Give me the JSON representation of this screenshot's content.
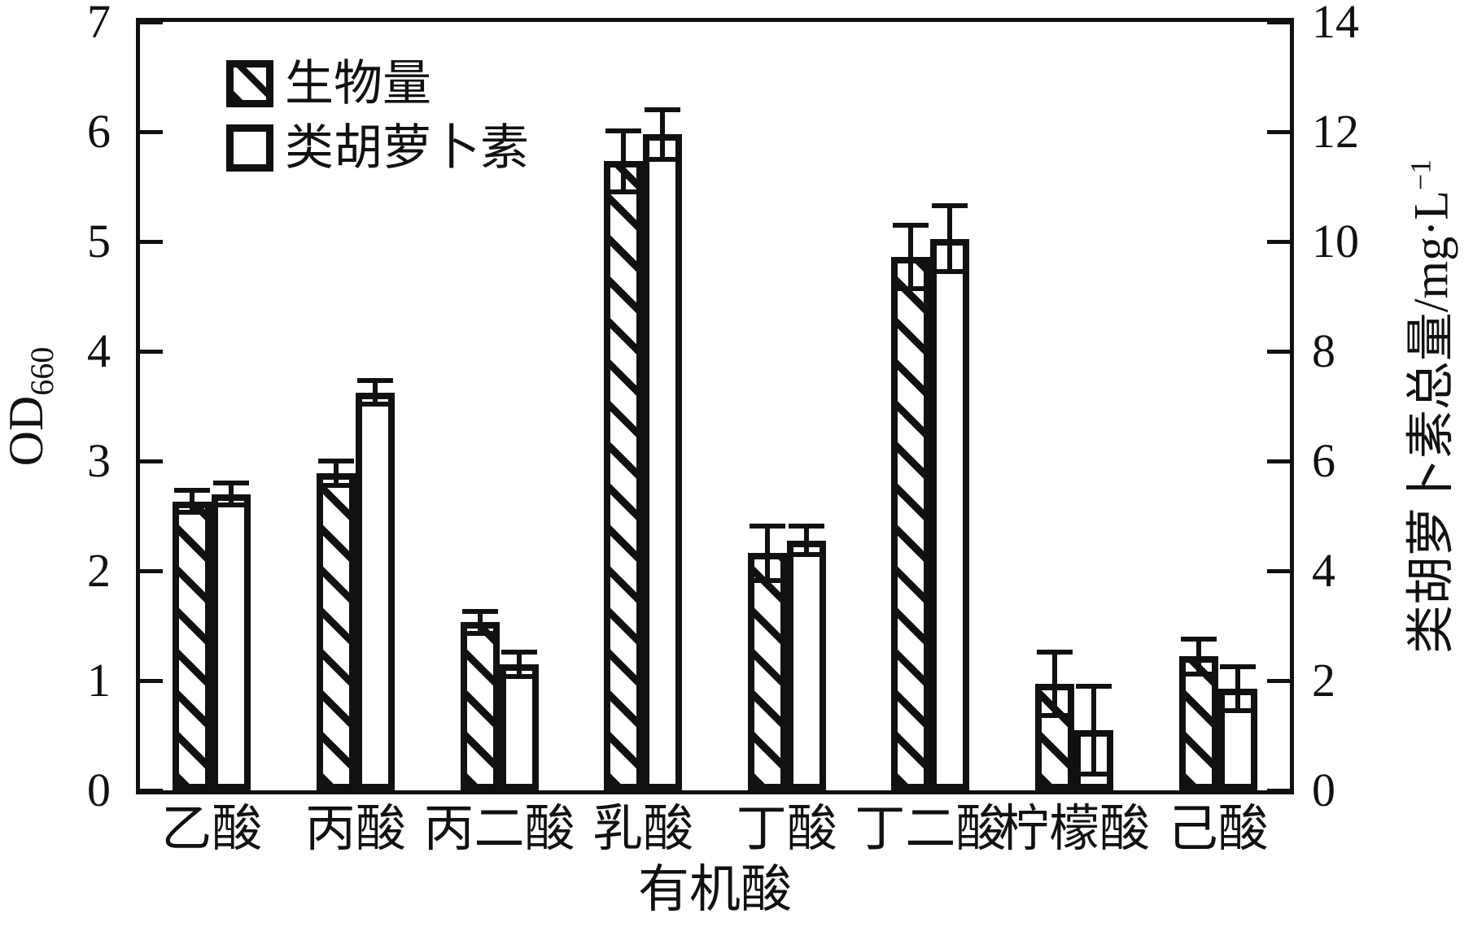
{
  "colors": {
    "ink": "#111111",
    "background": "#ffffff"
  },
  "chart_data": {
    "type": "bar",
    "title": "",
    "categories": [
      "乙酸",
      "丙酸",
      "丙二酸",
      "乳酸",
      "丁酸",
      "丁二酸",
      "柠檬酸",
      "己酸"
    ],
    "series": [
      {
        "name": "生物量",
        "axis": "left",
        "pattern": "hatch",
        "values": [
          2.63,
          2.89,
          1.53,
          5.73,
          2.16,
          4.86,
          0.97,
          1.22
        ],
        "errors": [
          0.1,
          0.11,
          0.1,
          0.28,
          0.25,
          0.29,
          0.29,
          0.16
        ]
      },
      {
        "name": "类胡萝卜素",
        "axis": "right",
        "pattern": "open",
        "values": [
          5.4,
          7.25,
          2.3,
          11.95,
          4.55,
          10.05,
          1.1,
          1.85
        ],
        "errors": [
          0.2,
          0.22,
          0.22,
          0.45,
          0.26,
          0.6,
          0.8,
          0.4
        ]
      }
    ],
    "xlabel": "有机酸",
    "ylabel_left": {
      "main": "OD",
      "sub": "660"
    },
    "ylabel_right": {
      "main": "类胡萝卜素总量/mg·L",
      "sup": "−1"
    },
    "y_left": {
      "min": 0,
      "max": 7,
      "step": 1,
      "ticks": [
        0,
        1,
        2,
        3,
        4,
        5,
        6,
        7
      ]
    },
    "y_right": {
      "min": 0,
      "max": 14,
      "step": 2,
      "ticks": [
        0,
        2,
        4,
        6,
        8,
        10,
        12,
        14
      ]
    },
    "legend_position": "top-left",
    "grid": false,
    "error_bars": true
  }
}
